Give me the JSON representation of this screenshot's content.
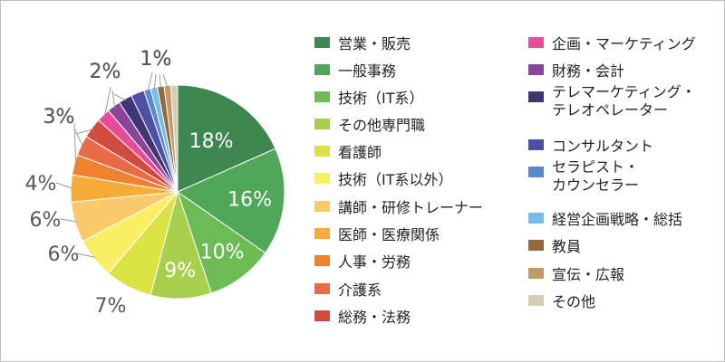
{
  "chart_data": {
    "type": "pie",
    "title": "",
    "slices": [
      {
        "label": "営業・販売",
        "value": 18,
        "color": "#3f8751",
        "data_label": "18%"
      },
      {
        "label": "一般事務",
        "value": 16,
        "color": "#4fa757",
        "data_label": "16%"
      },
      {
        "label": "技術（IT系）",
        "value": 10,
        "color": "#6dbb55",
        "data_label": "10%"
      },
      {
        "label": "その他専門職",
        "value": 9,
        "color": "#a8cf4c",
        "data_label": "9%"
      },
      {
        "label": "看護師",
        "value": 7,
        "color": "#dbe244",
        "data_label": "7%"
      },
      {
        "label": "技術（IT系以外）",
        "value": 6,
        "color": "#f9ef62",
        "data_label": "6%"
      },
      {
        "label": "講師・研修トレーナー",
        "value": 6,
        "color": "#fac96a",
        "data_label": "6%"
      },
      {
        "label": "医師・医療関係",
        "value": 4,
        "color": "#f6ac37",
        "data_label": "4%"
      },
      {
        "label": "人事・労務",
        "value": 3,
        "color": "#ef8131",
        "data_label": "3%"
      },
      {
        "label": "介護系",
        "value": 3,
        "color": "#e86b45",
        "data_label": "3%"
      },
      {
        "label": "総務・法務",
        "value": 3,
        "color": "#d24b3e",
        "data_label": "3%"
      },
      {
        "label": "企画・マーケティング",
        "value": 2,
        "color": "#e64c9a",
        "data_label": "2%"
      },
      {
        "label": "財務・会計",
        "value": 2,
        "color": "#8a449b",
        "data_label": "2%"
      },
      {
        "label": "テレマーケティング・\nテレオペレーター",
        "value": 2,
        "color": "#3f3577",
        "data_label": "2%"
      },
      {
        "label": "コンサルタント",
        "value": 2,
        "color": "#4b52a5",
        "data_label": ""
      },
      {
        "label": "セラピスト・\nカウンセラー",
        "value": 1,
        "color": "#5a88cc",
        "data_label": "1%"
      },
      {
        "label": "経営企画戦略・総括",
        "value": 1,
        "color": "#77bde9",
        "data_label": "1%"
      },
      {
        "label": "教員",
        "value": 1,
        "color": "#93683b",
        "data_label": "1%"
      },
      {
        "label": "宣伝・広報",
        "value": 1,
        "color": "#c39a62",
        "data_label": "1%"
      },
      {
        "label": "その他",
        "value": 1,
        "color": "#d7cdb4",
        "data_label": ""
      }
    ],
    "legend_position": "right"
  }
}
